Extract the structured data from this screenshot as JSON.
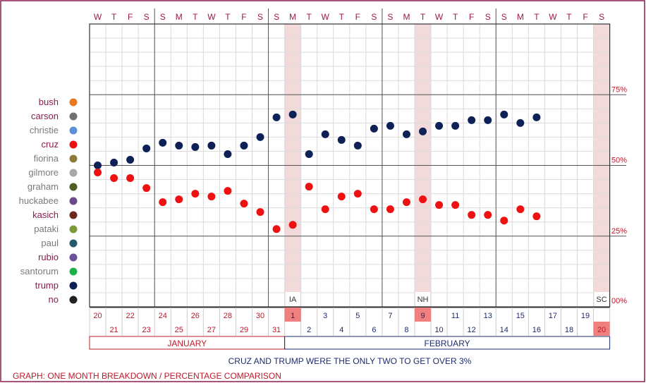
{
  "chart_data": {
    "type": "scatter",
    "weekdays": [
      "W",
      "T",
      "F",
      "S",
      "S",
      "M",
      "T",
      "W",
      "T",
      "F",
      "S",
      "S",
      "M",
      "T",
      "W",
      "T",
      "F",
      "S",
      "S",
      "M",
      "T",
      "W",
      "T",
      "F",
      "S",
      "S",
      "M",
      "T",
      "W",
      "T",
      "F",
      "S"
    ],
    "dates": [
      "20",
      "21",
      "22",
      "23",
      "24",
      "25",
      "26",
      "27",
      "28",
      "29",
      "30",
      "31",
      "1",
      "2",
      "3",
      "4",
      "5",
      "6",
      "7",
      "8",
      "9",
      "10",
      "11",
      "12",
      "13",
      "14",
      "15",
      "16",
      "17",
      "18",
      "19",
      "20"
    ],
    "months": [
      "JANUARY",
      "FEBRUARY"
    ],
    "y_ticks": [
      "75%",
      "50%",
      "25%",
      "00%"
    ],
    "ylim": [
      0,
      100
    ],
    "events": [
      {
        "label": "IA",
        "date_index": 12
      },
      {
        "label": "NH",
        "date_index": 20
      },
      {
        "label": "SC",
        "date_index": 31
      }
    ],
    "candidates": [
      {
        "name": "bush",
        "color": "#e87722"
      },
      {
        "name": "carson",
        "color": "#707070"
      },
      {
        "name": "christie",
        "color": "#5b8fd6"
      },
      {
        "name": "cruz",
        "color": "#ee1111"
      },
      {
        "name": "fiorina",
        "color": "#8c7a3a"
      },
      {
        "name": "gilmore",
        "color": "#a8a8a8"
      },
      {
        "name": "graham",
        "color": "#4d5e22"
      },
      {
        "name": "huckabee",
        "color": "#6a4a8c"
      },
      {
        "name": "kasich",
        "color": "#6b2a1e"
      },
      {
        "name": "pataki",
        "color": "#7a9a3a"
      },
      {
        "name": "paul",
        "color": "#255a6e"
      },
      {
        "name": "rubio",
        "color": "#6b4f9a"
      },
      {
        "name": "santorum",
        "color": "#1db34a"
      },
      {
        "name": "trump",
        "color": "#0e2157"
      },
      {
        "name": "no",
        "color": "#222222"
      }
    ],
    "series": [
      {
        "name": "trump",
        "color": "#0e2157",
        "values": [
          50,
          51,
          52,
          56,
          58,
          57,
          56.5,
          57,
          54,
          57,
          60,
          67,
          68,
          54,
          61,
          59,
          57,
          63,
          64,
          61,
          62,
          64,
          64,
          66,
          66,
          68,
          65,
          67,
          null,
          null,
          null,
          null
        ]
      },
      {
        "name": "cruz",
        "color": "#ee1111",
        "values": [
          47.5,
          45.5,
          45.5,
          42,
          37,
          38,
          40,
          39,
          41,
          36.5,
          33.5,
          27.5,
          29,
          42.5,
          34.5,
          39,
          40,
          34.5,
          34.5,
          37,
          38,
          36,
          36,
          32.5,
          32.5,
          30.5,
          34.5,
          32,
          null,
          null,
          null,
          null
        ]
      }
    ],
    "caption": "CRUZ AND TRUMP WERE THE ONLY TWO TO GET OVER 3%",
    "footer": "GRAPH: ONE MONTH BREAKDOWN / PERCENTAGE COMPARISON"
  }
}
